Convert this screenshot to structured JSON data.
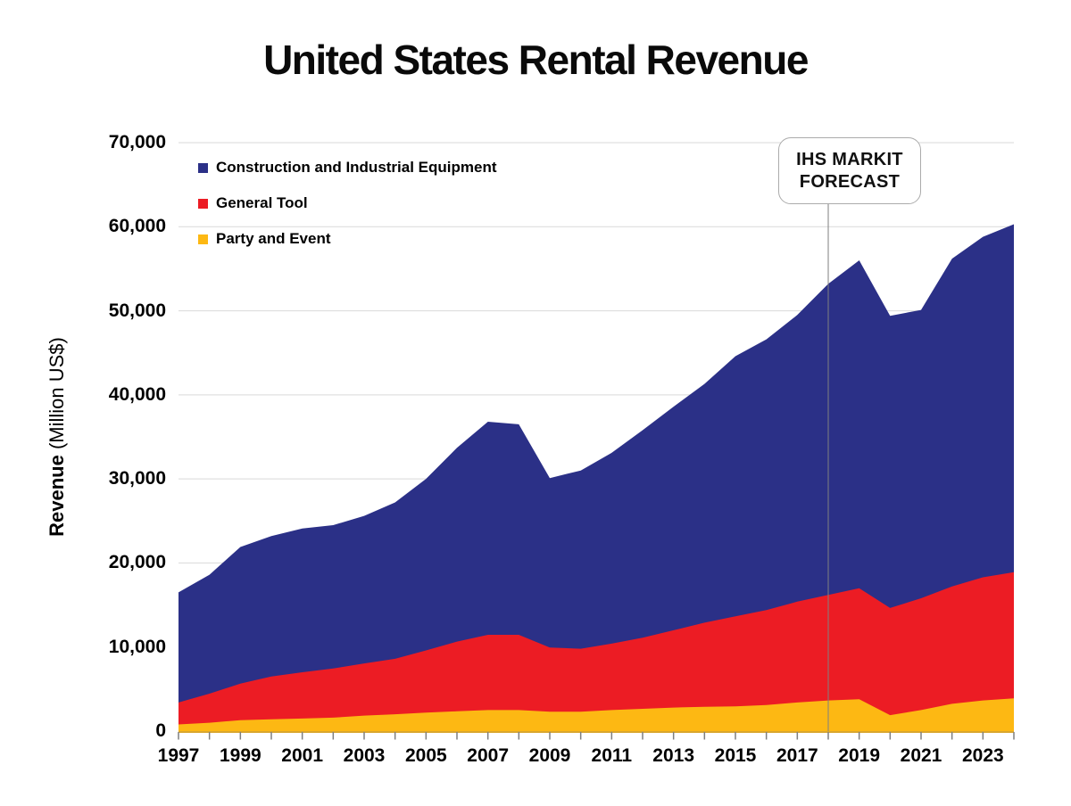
{
  "title": "United States Rental Revenue",
  "y_axis": {
    "title_bold": "Revenue",
    "title_regular": " (Million US$)",
    "ticks": [
      {
        "value": 70000,
        "text": "70,000"
      },
      {
        "value": 60000,
        "text": "60,000"
      },
      {
        "value": 50000,
        "text": "50,000"
      },
      {
        "value": 40000,
        "text": "40,000"
      },
      {
        "value": 30000,
        "text": "30,000"
      },
      {
        "value": 20000,
        "text": "20,000"
      },
      {
        "value": 10000,
        "text": "10,000"
      },
      {
        "value": 0,
        "text": "0"
      }
    ]
  },
  "x_axis": {
    "labels": [
      {
        "year": 1997,
        "text": "1997"
      },
      {
        "year": 1999,
        "text": "1999"
      },
      {
        "year": 2001,
        "text": "2001"
      },
      {
        "year": 2003,
        "text": "2003"
      },
      {
        "year": 2005,
        "text": "2005"
      },
      {
        "year": 2007,
        "text": "2007"
      },
      {
        "year": 2009,
        "text": "2009"
      },
      {
        "year": 2011,
        "text": "2011"
      },
      {
        "year": 2013,
        "text": "2013"
      },
      {
        "year": 2015,
        "text": "2015"
      },
      {
        "year": 2017,
        "text": "2017"
      },
      {
        "year": 2019,
        "text": "2019"
      },
      {
        "year": 2021,
        "text": "2021"
      },
      {
        "year": 2023,
        "text": "2023"
      }
    ],
    "minor_tick_start": 1997,
    "minor_tick_end": 2024
  },
  "annotation": {
    "line1": "IHS MARKIT",
    "line2": "FORECAST",
    "at_year": 2018
  },
  "legend": {
    "items": [
      {
        "label": "Construction and Industrial Equipment",
        "color": "#2B3087"
      },
      {
        "label": "General Tool",
        "color": "#EC1C24"
      },
      {
        "label": "Party and Event",
        "color": "#FDB813"
      }
    ]
  },
  "colors": {
    "construction": "#2B3087",
    "general_tool": "#EC1C24",
    "party_event": "#FDB813",
    "gridline": "#D9D9D9",
    "tick_mark": "#7F7F7F",
    "axis_line": "#D9A62E",
    "forecast_line": "#7F7F7F",
    "annotation_border": "#ABABAB",
    "background": "#FFFFFF",
    "text": "#000000"
  },
  "chart_data": {
    "type": "area",
    "stacked": true,
    "title": "United States Rental Revenue",
    "xlabel": "",
    "ylabel": "Revenue (Million US$)",
    "ylim": [
      0,
      70000
    ],
    "x_range": [
      1997,
      2024
    ],
    "grid": "horizontal",
    "legend_position": "top-left-inside",
    "forecast_start_year": 2018,
    "x": [
      1997,
      1998,
      1999,
      2000,
      2001,
      2002,
      2003,
      2004,
      2005,
      2006,
      2007,
      2008,
      2009,
      2010,
      2011,
      2012,
      2013,
      2014,
      2015,
      2016,
      2017,
      2018,
      2019,
      2020,
      2021,
      2022,
      2023,
      2024
    ],
    "series": [
      {
        "name": "Party and Event",
        "color": "#FDB813",
        "values": [
          800,
          1000,
          1300,
          1400,
          1500,
          1600,
          1850,
          2000,
          2200,
          2350,
          2500,
          2500,
          2300,
          2300,
          2500,
          2650,
          2800,
          2900,
          2950,
          3100,
          3400,
          3650,
          3800,
          1900,
          2500,
          3250,
          3650,
          3900
        ]
      },
      {
        "name": "General Tool",
        "color": "#EC1C24",
        "values": [
          2600,
          3450,
          4350,
          5100,
          5500,
          5850,
          6200,
          6600,
          7400,
          8300,
          8950,
          8950,
          7650,
          7500,
          7900,
          8450,
          9200,
          10000,
          10700,
          11300,
          12000,
          12550,
          13200,
          12750,
          13300,
          13950,
          14650,
          15000
        ]
      },
      {
        "name": "Construction and Industrial Equipment",
        "color": "#2B3087",
        "values": [
          13100,
          14150,
          16250,
          16700,
          17100,
          17050,
          17550,
          18600,
          20400,
          23050,
          25350,
          25050,
          20150,
          21200,
          22700,
          24700,
          26600,
          28400,
          30950,
          32200,
          34100,
          37000,
          39000,
          34750,
          34300,
          39000,
          40500,
          41400
        ]
      }
    ],
    "totals": [
      16500,
      18600,
      21900,
      23200,
      24100,
      24500,
      25600,
      27200,
      30000,
      33700,
      36800,
      36500,
      30100,
      31000,
      33100,
      35800,
      38600,
      41300,
      44600,
      46600,
      49500,
      53200,
      56000,
      49400,
      50100,
      56200,
      58800,
      60300
    ]
  }
}
